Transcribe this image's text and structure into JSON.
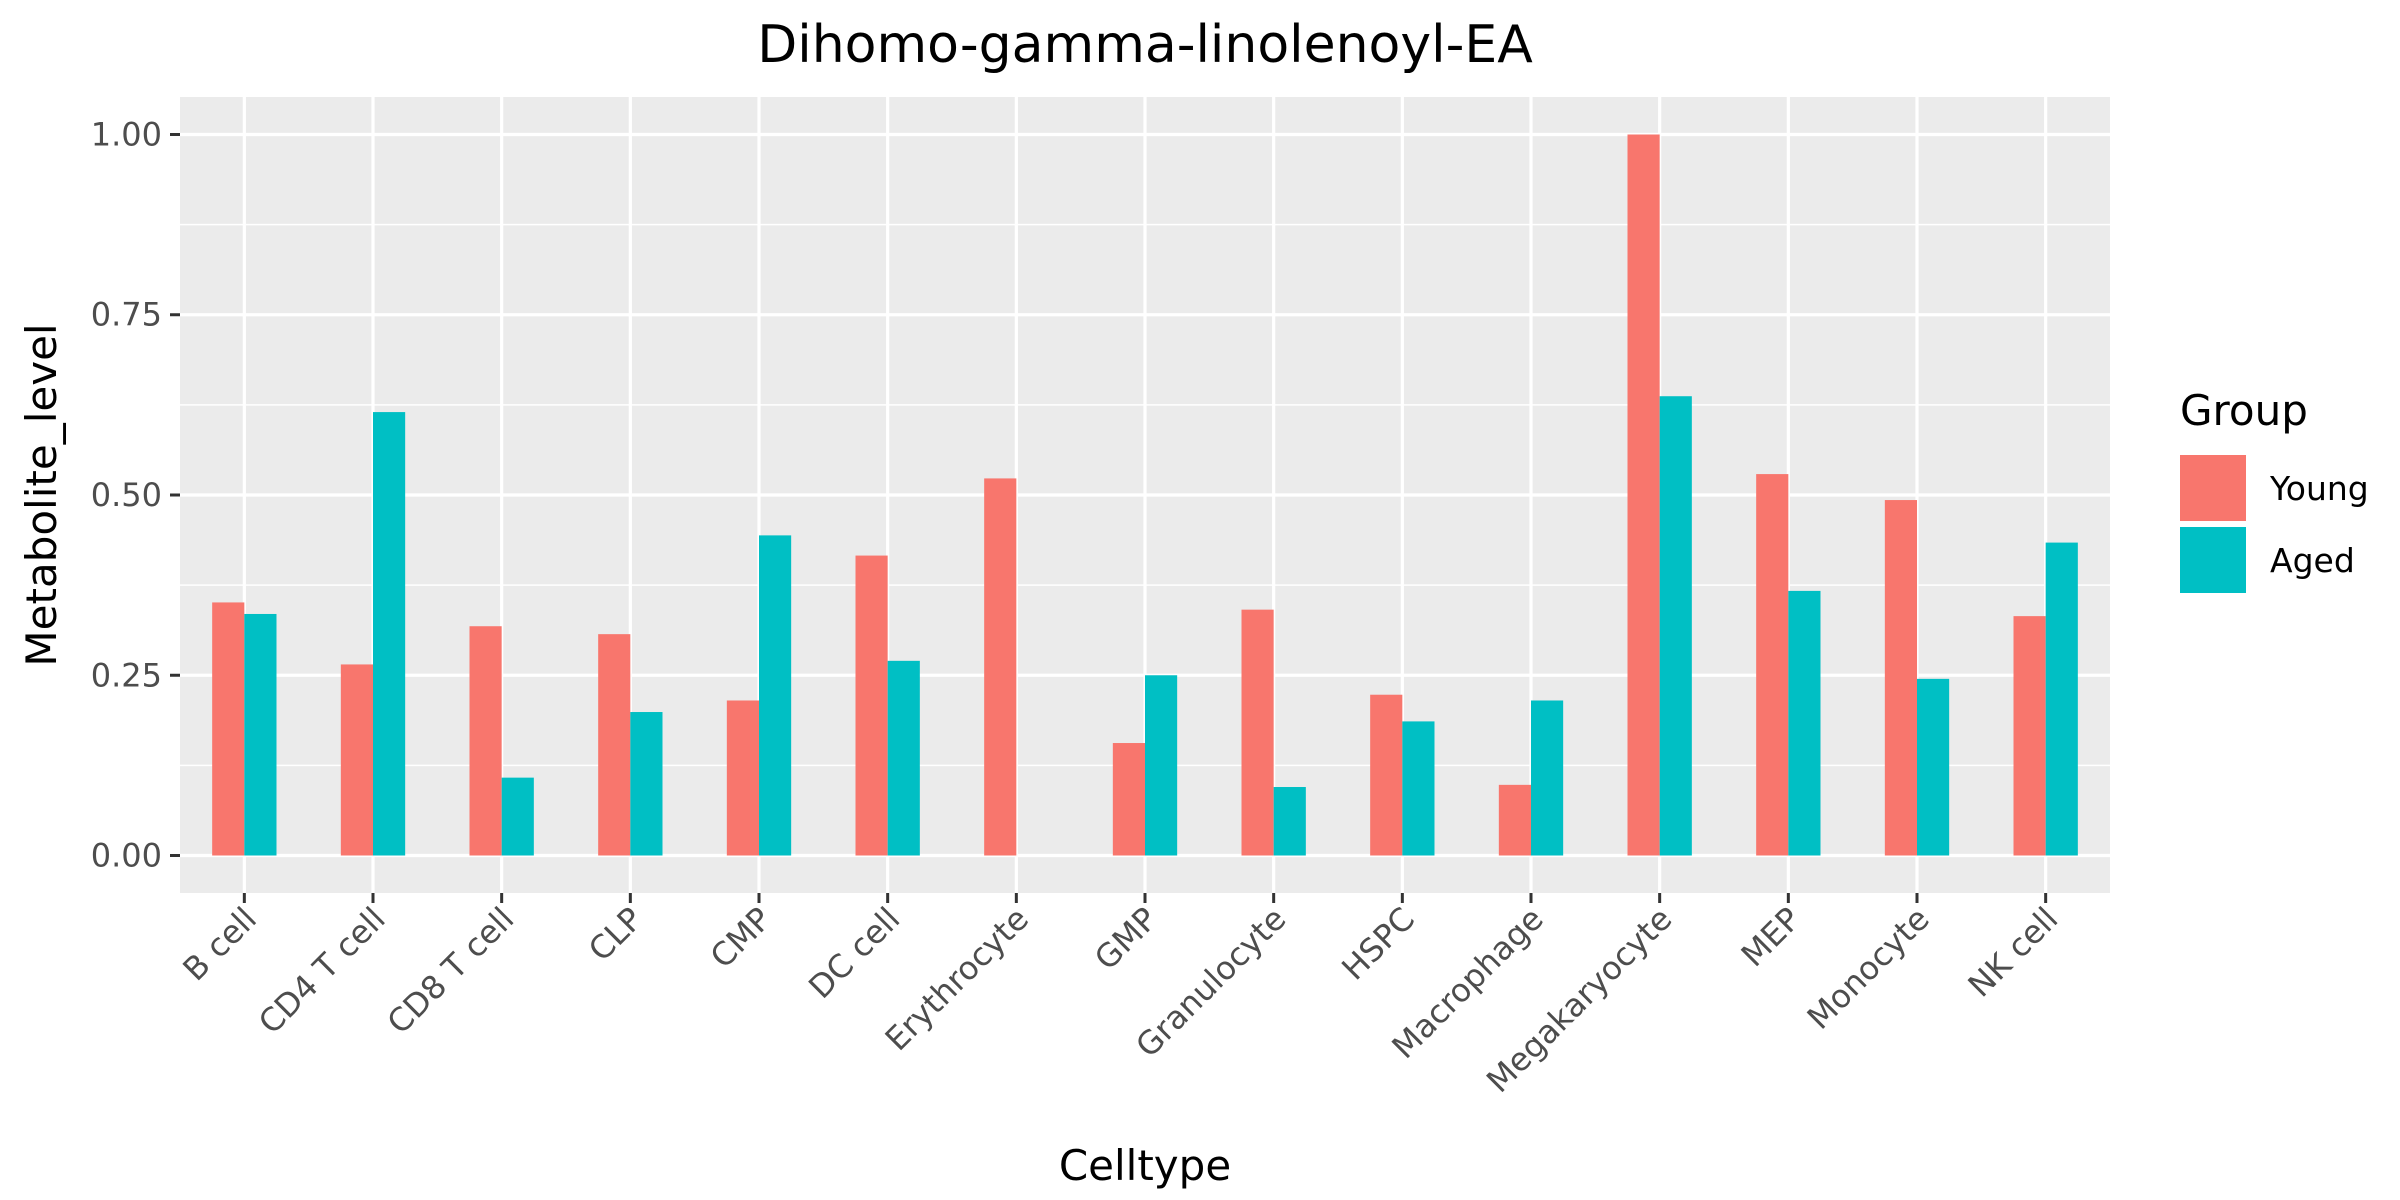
{
  "chart_data": {
    "type": "bar",
    "title": "Dihomo-gamma-linolenoyl-EA",
    "xlabel": "Celltype",
    "ylabel": "Metabolite_level",
    "categories": [
      "B cell",
      "CD4 T cell",
      "CD8 T cell",
      "CLP",
      "CMP",
      "DC cell",
      "Erythrocyte",
      "GMP",
      "Granulocyte",
      "HSPC",
      "Macrophage",
      "Megakaryocyte",
      "MEP",
      "Monocyte",
      "NK cell"
    ],
    "series": [
      {
        "name": "Young",
        "color": "#F8766D",
        "values": [
          0.351,
          0.265,
          0.318,
          0.307,
          0.215,
          0.416,
          0.523,
          0.156,
          0.341,
          0.223,
          0.098,
          1.0,
          0.529,
          0.493,
          0.332
        ]
      },
      {
        "name": "Aged",
        "color": "#00BFC4",
        "values": [
          0.335,
          0.615,
          0.108,
          0.199,
          0.444,
          0.27,
          null,
          0.25,
          0.095,
          0.186,
          0.215,
          0.637,
          0.367,
          0.245,
          0.434
        ]
      }
    ],
    "ylim": [
      -0.052,
      1.052
    ],
    "yticks": [
      0.0,
      0.25,
      0.5,
      0.75,
      1.0
    ],
    "ytick_labels": [
      "0.00",
      "0.25",
      "0.50",
      "0.75",
      "1.00"
    ],
    "grid": true,
    "legend": {
      "title": "Group",
      "position": "right"
    }
  }
}
